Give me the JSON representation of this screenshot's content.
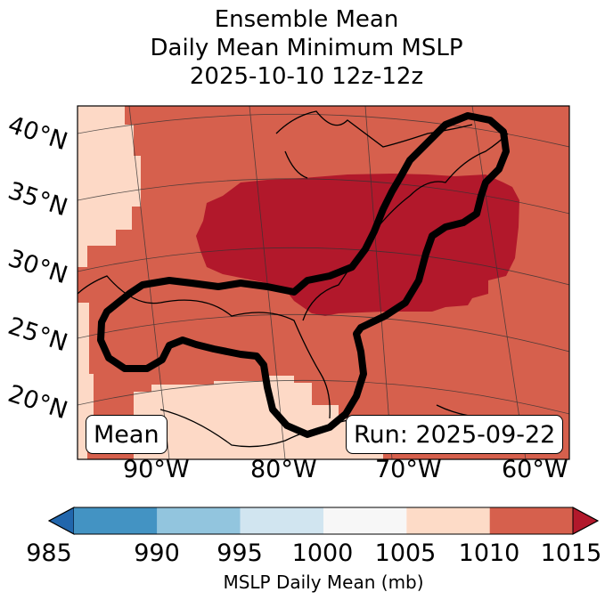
{
  "title": {
    "line1": "Ensemble Mean",
    "line2": "Daily Mean Minimum MSLP",
    "line3": "2025-10-10 12z-12z"
  },
  "map": {
    "lat_labels": [
      "40°N",
      "35°N",
      "30°N",
      "25°N",
      "20°N"
    ],
    "lon_labels": [
      "90°W",
      "80°W",
      "70°W",
      "60°W"
    ],
    "mean_box": "Mean",
    "run_box": "Run: 2025-09-22",
    "fill_colors": {
      "1005-1010": "#fdd9c6",
      "1010-1015": "#d6604d",
      ">1015": "#b2182b"
    }
  },
  "colorbar": {
    "levels": [
      "985",
      "990",
      "995",
      "1000",
      "1005",
      "1010",
      "1015"
    ],
    "colors": [
      "#2166ac",
      "#4393c3",
      "#92c5de",
      "#d1e5f0",
      "#f7f7f7",
      "#fddbc7",
      "#d6604d",
      "#b2182b"
    ],
    "label": "MSLP Daily Mean (mb)"
  }
}
